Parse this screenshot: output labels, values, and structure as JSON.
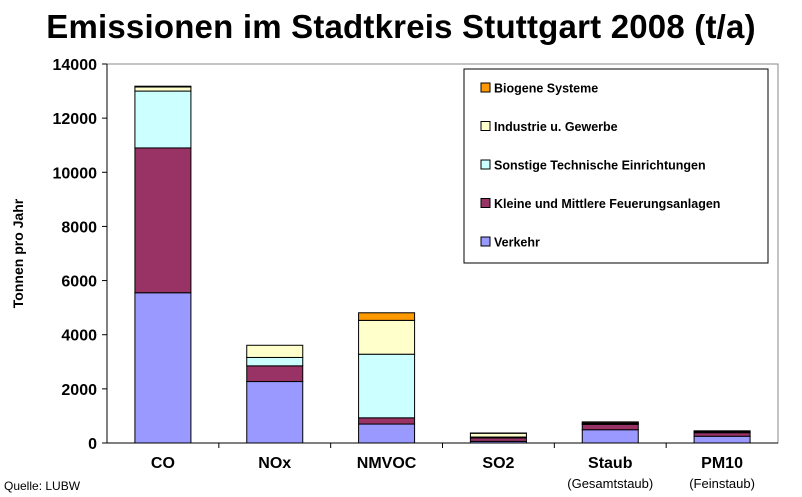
{
  "title": "Emissionen im Stadtkreis Stuttgart 2008 (t/a)",
  "source": "Quelle: LUBW",
  "chart_data": {
    "type": "bar",
    "stacked": true,
    "ylabel": "Tonnen pro Jahr",
    "ylim": [
      0,
      14000
    ],
    "yticks": [
      "0",
      "2000",
      "4000",
      "6000",
      "8000",
      "10000",
      "12000",
      "14000"
    ],
    "grid": false,
    "legend_position": "top-right",
    "categories": [
      "CO",
      "NOx",
      "NMVOC",
      "SO2",
      "Staub",
      "PM10"
    ],
    "category_sublabels": [
      "",
      "",
      "",
      "",
      "(Gesamtstaub)",
      "(Feinstaub)"
    ],
    "series": [
      {
        "name": "Verkehr",
        "color": "#9999ff",
        "values": [
          5550,
          2270,
          700,
          60,
          490,
          250
        ]
      },
      {
        "name": "Kleine und Mittlere Feuerungsanlagen",
        "color": "#993366",
        "values": [
          5350,
          580,
          230,
          130,
          200,
          130
        ]
      },
      {
        "name": "Sonstige Technische Einrichtungen",
        "color": "#ccffff",
        "values": [
          2100,
          310,
          2350,
          30,
          20,
          30
        ]
      },
      {
        "name": "Industrie u. Gewerbe",
        "color": "#ffffcc",
        "values": [
          150,
          450,
          1250,
          140,
          30,
          20
        ]
      },
      {
        "name": "Biogene Systeme",
        "color": "#ff9900",
        "values": [
          30,
          0,
          280,
          10,
          40,
          20
        ]
      }
    ],
    "legend_order": [
      "Biogene Systeme",
      "Industrie u. Gewerbe",
      "Sonstige Technische Einrichtungen",
      "Kleine und Mittlere Feuerungsanlagen",
      "Verkehr"
    ]
  }
}
